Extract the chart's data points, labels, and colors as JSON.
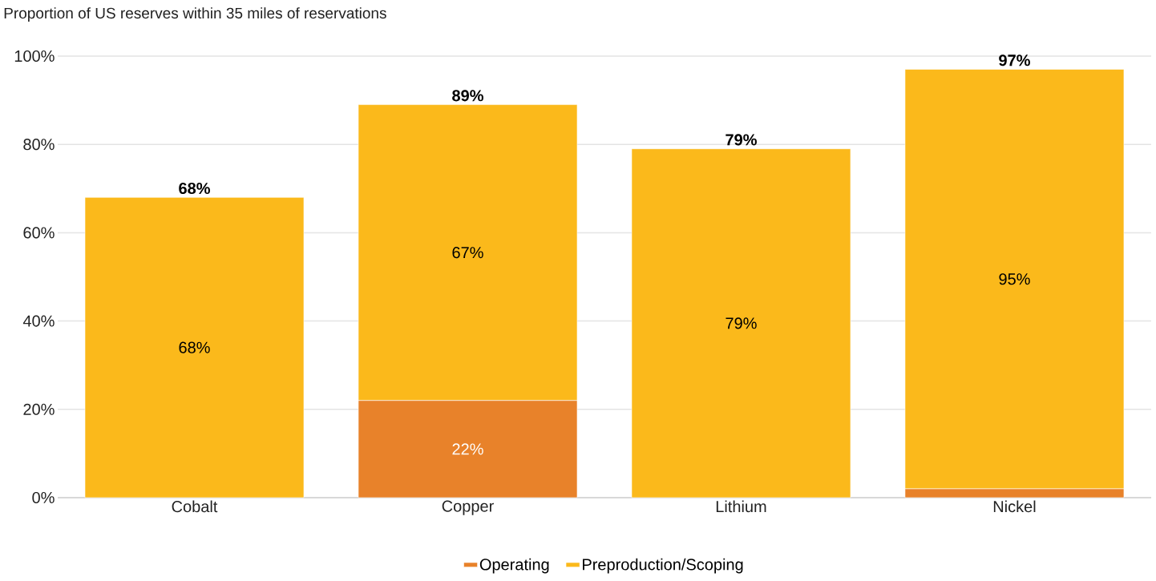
{
  "chart_data": {
    "type": "bar",
    "title": "Proportion of US reserves within 35 miles of reservations",
    "categories": [
      "Cobalt",
      "Copper",
      "Lithium",
      "Nickel"
    ],
    "stacked": true,
    "series": [
      {
        "name": "Operating",
        "color": "#e8822a",
        "values": [
          0,
          22,
          0,
          2
        ],
        "value_labels": [
          null,
          "22%",
          null,
          null
        ]
      },
      {
        "name": "Preproduction/Scoping",
        "color": "#fbb91b",
        "values": [
          68,
          67,
          79,
          95
        ],
        "value_labels": [
          "68%",
          "67%",
          "79%",
          "95%"
        ]
      }
    ],
    "totals": [
      "68%",
      "89%",
      "79%",
      "97%"
    ],
    "ylim": [
      0,
      100
    ],
    "yticks": [
      {
        "value": 0,
        "label": "0%"
      },
      {
        "value": 20,
        "label": "20%"
      },
      {
        "value": 40,
        "label": "40%"
      },
      {
        "value": 60,
        "label": "60%"
      },
      {
        "value": 80,
        "label": "80%"
      },
      {
        "value": 100,
        "label": "100%"
      }
    ],
    "grid": "y",
    "legend": "bottom"
  }
}
